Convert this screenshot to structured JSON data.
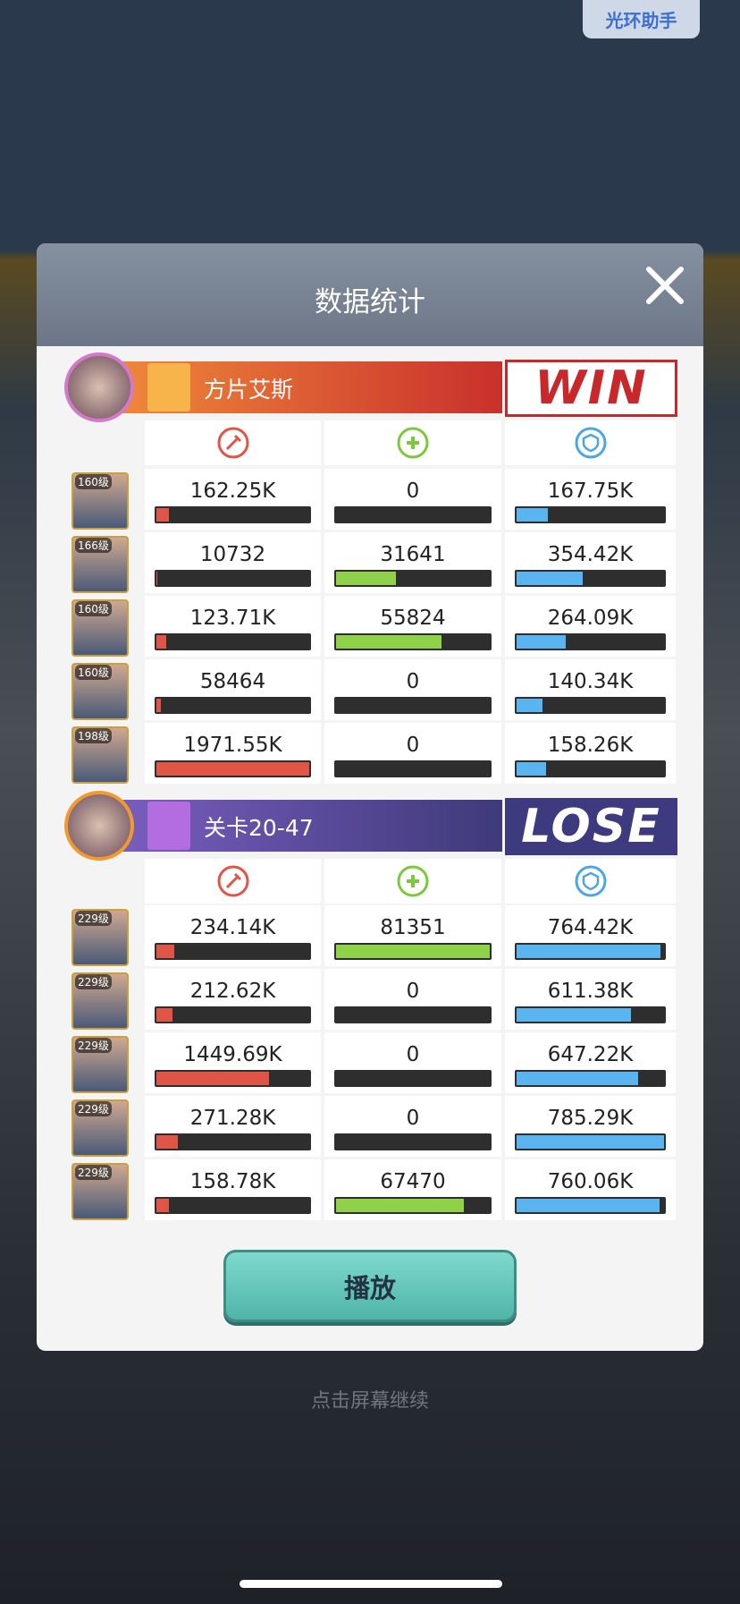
{
  "top_button": "光环助手",
  "background_hint": "点击屏幕继续",
  "dialog": {
    "title": "数据统计",
    "play_button": "播放",
    "teams": [
      {
        "name": "方片艾斯",
        "result": "WIN",
        "heroes": [
          {
            "level": "160级",
            "damage": {
              "value": 162250,
              "label": "162.25K"
            },
            "healing": 0,
            "tank": {
              "value": 167750,
              "label": "167.75K"
            }
          },
          {
            "level": "166级",
            "damage": 10732,
            "healing": 31641,
            "tank": {
              "value": 354420,
              "label": "354.42K"
            }
          },
          {
            "level": "160级",
            "damage": {
              "value": 123710,
              "label": "123.71K"
            },
            "healing": 55824,
            "tank": {
              "value": 264090,
              "label": "264.09K"
            }
          },
          {
            "level": "160级",
            "damage": 58464,
            "healing": 0,
            "tank": {
              "value": 140340,
              "label": "140.34K"
            }
          },
          {
            "level": "198级",
            "damage": {
              "value": 1971550,
              "label": "1971.55K"
            },
            "healing": 0,
            "tank": {
              "value": 158260,
              "label": "158.26K"
            }
          }
        ]
      },
      {
        "name": "关卡20-47",
        "result": "LOSE",
        "heroes": [
          {
            "level": "229级",
            "damage": {
              "value": 234140,
              "label": "234.14K"
            },
            "healing": 81351,
            "tank": {
              "value": 764420,
              "label": "764.42K"
            }
          },
          {
            "level": "229级",
            "damage": {
              "value": 212620,
              "label": "212.62K"
            },
            "healing": 0,
            "tank": {
              "value": 611380,
              "label": "611.38K"
            }
          },
          {
            "level": "229级",
            "damage": {
              "value": 1449690,
              "label": "1449.69K"
            },
            "healing": 0,
            "tank": {
              "value": 647220,
              "label": "647.22K"
            }
          },
          {
            "level": "229级",
            "damage": {
              "value": 271280,
              "label": "271.28K"
            },
            "healing": 0,
            "tank": {
              "value": 785290,
              "label": "785.29K"
            }
          },
          {
            "level": "229级",
            "damage": {
              "value": 158780,
              "label": "158.78K"
            },
            "healing": 67470,
            "tank": {
              "value": 760060,
              "label": "760.06K"
            }
          }
        ]
      }
    ]
  }
}
